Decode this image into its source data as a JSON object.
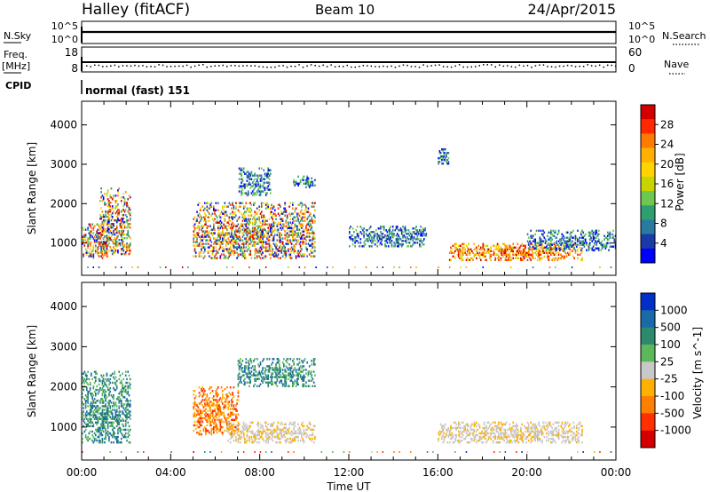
{
  "header": {
    "station": "Halley (fitACF)",
    "beam": "Beam 10",
    "date": "24/Apr/2015"
  },
  "aux": {
    "nsky_label": "N.Sky",
    "nsearch_label": "N.Search",
    "nsky_ticks": [
      "10^5",
      "10^0"
    ],
    "nsearch_ticks": [
      "10^5",
      "10^0"
    ],
    "freq_label_1": "Freq.",
    "freq_label_2": "[MHz]",
    "freq_ticks": [
      "18",
      "8"
    ],
    "nave_label": "Nave",
    "nave_ticks": [
      "60",
      "0"
    ],
    "cpid_label": "CPID",
    "cpid_text": "normal (fast) 151"
  },
  "xaxis": {
    "label": "Time UT",
    "ticks": [
      "00:00",
      "04:00",
      "08:00",
      "12:00",
      "16:00",
      "20:00",
      "00:00"
    ]
  },
  "chart_data": [
    {
      "type": "heatmap",
      "panel": "power",
      "xlabel": "Time UT",
      "ylabel": "Slant Range [km]",
      "xlim_hours": [
        0,
        24
      ],
      "ylim_km": [
        180,
        4600
      ],
      "ytick_values": [
        1000,
        2000,
        3000,
        4000
      ],
      "ytick_labels": [
        "1000",
        "2000",
        "3000",
        "4000"
      ],
      "colorbar": {
        "label": "Power [dB]",
        "tick_labels": [
          "28",
          "24",
          "20",
          "16",
          "12",
          "8",
          "4"
        ],
        "colors": [
          "#d40000",
          "#ff2800",
          "#ff7a00",
          "#ffb000",
          "#ffd400",
          "#c8d400",
          "#6ec850",
          "#2ea070",
          "#2a7aa0",
          "#1a3aa8",
          "#0000ff"
        ]
      },
      "regions": [
        {
          "t": [
            0.0,
            1.2
          ],
          "r": [
            600,
            1500
          ],
          "level": "mixed"
        },
        {
          "t": [
            0.8,
            2.2
          ],
          "r": [
            700,
            2400
          ],
          "level": "mixed"
        },
        {
          "t": [
            5.0,
            10.5
          ],
          "r": [
            600,
            2000
          ],
          "level": "mixed"
        },
        {
          "t": [
            7.0,
            8.5
          ],
          "r": [
            2200,
            2900
          ],
          "level": "low"
        },
        {
          "t": [
            9.5,
            10.5
          ],
          "r": [
            2400,
            2700
          ],
          "level": "low"
        },
        {
          "t": [
            12.0,
            15.5
          ],
          "r": [
            900,
            1400
          ],
          "level": "low"
        },
        {
          "t": [
            16.0,
            16.5
          ],
          "r": [
            3000,
            3400
          ],
          "level": "low"
        },
        {
          "t": [
            16.5,
            22.5
          ],
          "r": [
            550,
            1000
          ],
          "level": "high"
        },
        {
          "t": [
            20.0,
            24.0
          ],
          "r": [
            800,
            1300
          ],
          "level": "low"
        }
      ]
    },
    {
      "type": "heatmap",
      "panel": "velocity",
      "xlabel": "Time UT",
      "ylabel": "Slant Range [km]",
      "xlim_hours": [
        0,
        24
      ],
      "ylim_km": [
        180,
        4600
      ],
      "ytick_values": [
        1000,
        2000,
        3000,
        4000
      ],
      "ytick_labels": [
        "1000",
        "2000",
        "3000",
        "4000"
      ],
      "colorbar": {
        "label": "Velocity [m s^-1]",
        "tick_labels": [
          "1000",
          "500",
          "100",
          "25",
          "-25",
          "-100",
          "-500",
          "-1000"
        ],
        "colors": [
          "#0030c8",
          "#1a6aa8",
          "#2e8a6e",
          "#5cb85a",
          "#c8c8c8",
          "#ffb000",
          "#ff8000",
          "#ff3000",
          "#d40000"
        ]
      },
      "regions": [
        {
          "t": [
            0.0,
            2.2
          ],
          "r": [
            600,
            2400
          ],
          "level": "positive"
        },
        {
          "t": [
            5.0,
            7.0
          ],
          "r": [
            800,
            2000
          ],
          "level": "negative"
        },
        {
          "t": [
            6.5,
            10.5
          ],
          "r": [
            600,
            1100
          ],
          "level": "near-zero"
        },
        {
          "t": [
            7.0,
            10.5
          ],
          "r": [
            2000,
            2700
          ],
          "level": "positive"
        },
        {
          "t": [
            16.0,
            22.5
          ],
          "r": [
            600,
            1100
          ],
          "level": "near-zero"
        }
      ]
    }
  ],
  "colors": {
    "frame": "#000000",
    "background": "#ffffff",
    "nodata": "#ffffff"
  }
}
